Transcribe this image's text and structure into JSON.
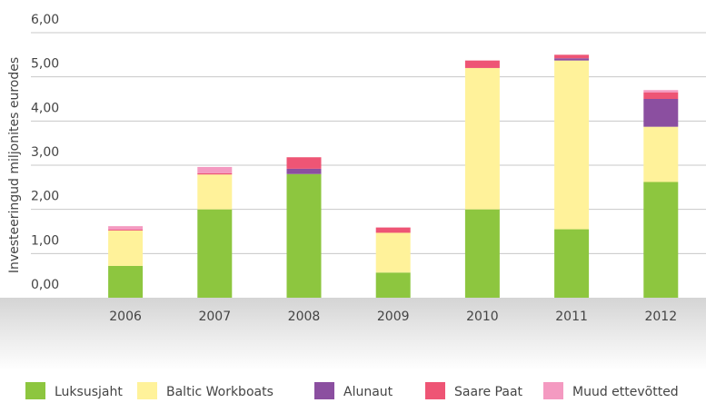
{
  "chart_data": {
    "type": "stacked_bar",
    "y_label": "Investeeringud miljonites eurodes",
    "categories": [
      "2006",
      "2007",
      "2008",
      "2009",
      "2010",
      "2011",
      "2012"
    ],
    "series": [
      {
        "name": "Luksusjaht",
        "color": "#8dc63f",
        "values": [
          0.72,
          2.0,
          2.8,
          0.57,
          2.0,
          1.55,
          2.62
        ]
      },
      {
        "name": "Baltic Workboats",
        "color": "#fff29a",
        "values": [
          0.8,
          0.79,
          0,
          0.9,
          3.2,
          3.82,
          1.25
        ]
      },
      {
        "name": "Alunaut",
        "color": "#8b4fa0",
        "values": [
          0,
          0,
          0.12,
          0,
          0,
          0.05,
          0.63
        ]
      },
      {
        "name": "Saare Paat",
        "color": "#ee5575",
        "values": [
          0.02,
          0.03,
          0.26,
          0.12,
          0.17,
          0.08,
          0.15
        ]
      },
      {
        "name": "Muud ettevõtted",
        "color": "#f49ac1",
        "values": [
          0.08,
          0.14,
          0,
          0,
          0,
          0,
          0.05
        ]
      }
    ],
    "ylim": [
      0,
      6
    ],
    "yticks": [
      {
        "value": 0,
        "label": "0,00"
      },
      {
        "value": 1,
        "label": "1,00"
      },
      {
        "value": 2,
        "label": "2,00"
      },
      {
        "value": 3,
        "label": "3,00"
      },
      {
        "value": 4,
        "label": "4,00"
      },
      {
        "value": 5,
        "label": "5,00"
      },
      {
        "value": 6,
        "label": "6,00"
      }
    ],
    "grid": true,
    "legend": "bottom"
  }
}
